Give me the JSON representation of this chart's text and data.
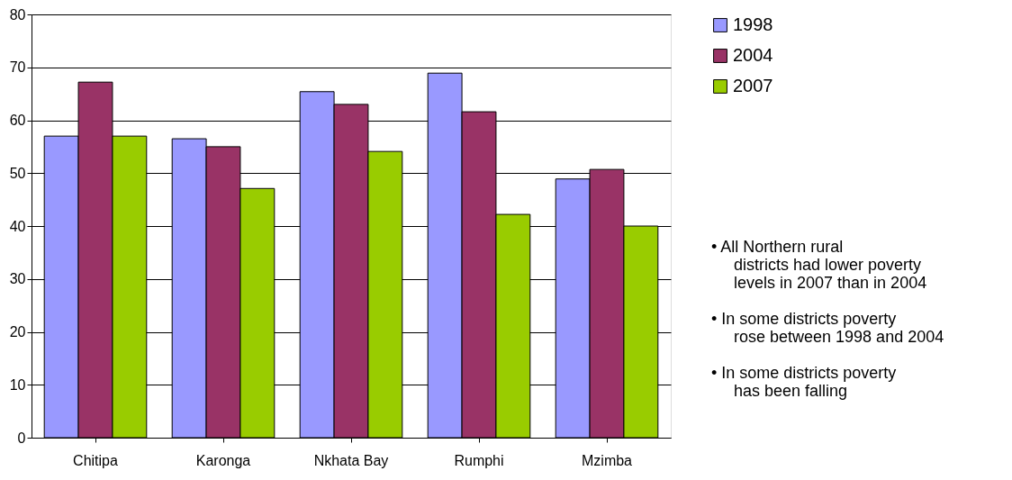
{
  "chart_data": {
    "type": "bar",
    "categories": [
      "Chitipa",
      "Karonga",
      "Nkhata Bay",
      "Rumphi",
      "Mzimba"
    ],
    "series": [
      {
        "name": "1998",
        "color": "#9999ff",
        "values": [
          57.0,
          56.5,
          65.4,
          68.9,
          48.9
        ]
      },
      {
        "name": "2004",
        "color": "#993366",
        "values": [
          67.2,
          55.0,
          63.0,
          61.6,
          50.7
        ]
      },
      {
        "name": "2007",
        "color": "#99cc00",
        "values": [
          57.0,
          47.1,
          54.1,
          42.2,
          40.0
        ]
      }
    ],
    "ylim": [
      0,
      80
    ],
    "yticks": [
      0,
      10,
      20,
      30,
      40,
      50,
      60,
      70,
      80
    ],
    "grid": "y",
    "legend": "right",
    "annotations": [
      "• All Northern rural districts had lower poverty levels in 2007 than in 2004",
      "• In some districts poverty rose between 1998 and 2004",
      "• In some districts poverty has been falling"
    ]
  }
}
